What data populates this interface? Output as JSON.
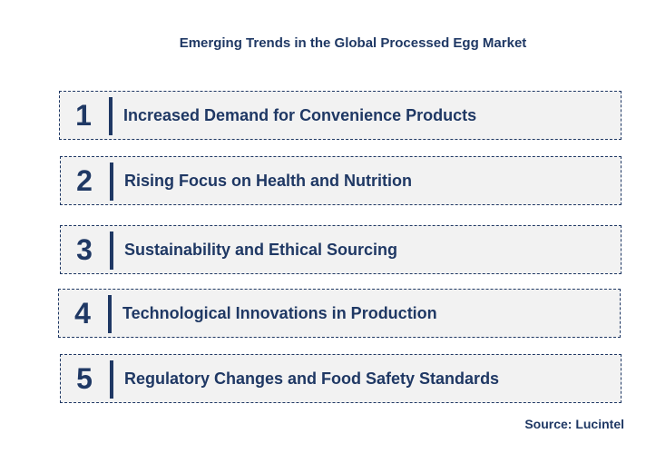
{
  "title": "Emerging Trends in the Global Processed Egg Market",
  "trends": [
    {
      "number": "1",
      "label": "Increased Demand for Convenience Products"
    },
    {
      "number": "2",
      "label": "Rising Focus on Health and Nutrition"
    },
    {
      "number": "3",
      "label": "Sustainability and Ethical Sourcing"
    },
    {
      "number": "4",
      "label": "Technological Innovations in Production"
    },
    {
      "number": "5",
      "label": "Regulatory Changes and Food Safety Standards"
    }
  ],
  "source": "Source: Lucintel",
  "colors": {
    "text": "#1f3864",
    "box_fill": "#f2f2f2",
    "box_border": "#1f3864"
  }
}
